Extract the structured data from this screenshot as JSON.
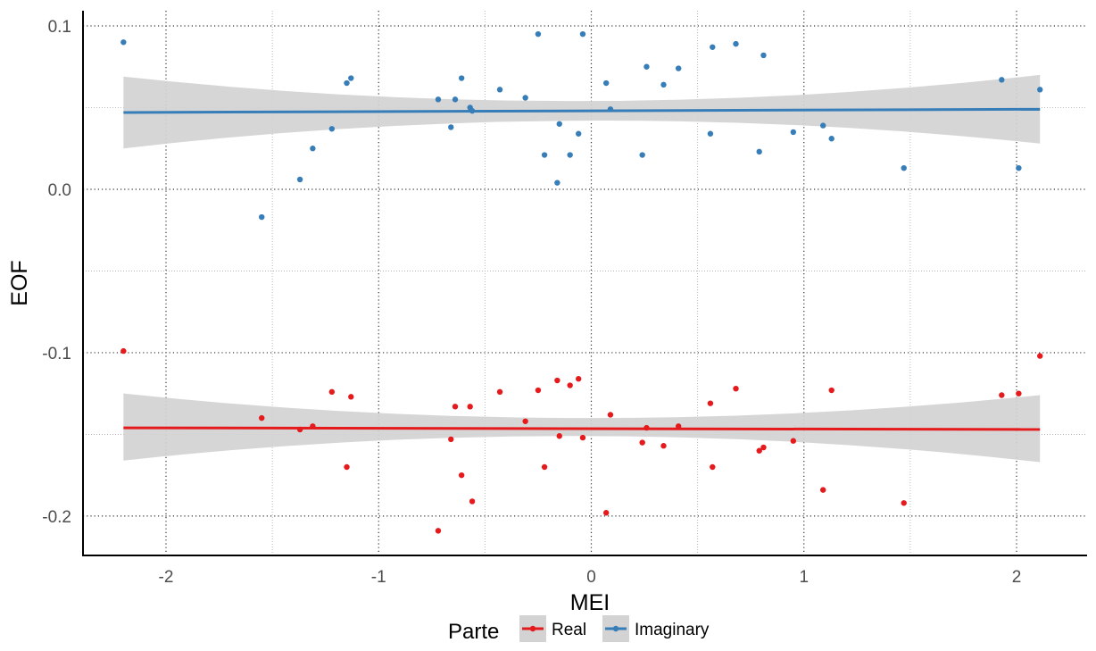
{
  "chart_data": {
    "type": "scatter",
    "xlabel": "MEI",
    "ylabel": "EOF",
    "xlim": [
      -2.4,
      2.4
    ],
    "ylim": [
      -0.225,
      0.11
    ],
    "x_ticks": [
      "-2",
      "-1",
      "0",
      "1",
      "2"
    ],
    "x_tick_values": [
      -2,
      -1,
      0,
      1,
      2
    ],
    "y_ticks": [
      "0.1",
      "0.0",
      "-0.1",
      "-0.2"
    ],
    "y_tick_values": [
      0.1,
      0.0,
      -0.1,
      -0.2
    ],
    "grid": true,
    "legend": {
      "title": "Parte",
      "position": "bottom",
      "entries": [
        "Real",
        "Imaginary"
      ]
    },
    "series": [
      {
        "name": "Real",
        "color": "#e41a1c",
        "points": [
          [
            -2.2,
            -0.099
          ],
          [
            -1.55,
            -0.14
          ],
          [
            -1.37,
            -0.147
          ],
          [
            -1.31,
            -0.145
          ],
          [
            -1.22,
            -0.124
          ],
          [
            -1.15,
            -0.17
          ],
          [
            -1.13,
            -0.127
          ],
          [
            -0.72,
            -0.209
          ],
          [
            -0.66,
            -0.153
          ],
          [
            -0.64,
            -0.133
          ],
          [
            -0.61,
            -0.175
          ],
          [
            -0.57,
            -0.133
          ],
          [
            -0.56,
            -0.191
          ],
          [
            -0.43,
            -0.124
          ],
          [
            -0.31,
            -0.142
          ],
          [
            -0.25,
            -0.123
          ],
          [
            -0.22,
            -0.17
          ],
          [
            -0.16,
            -0.117
          ],
          [
            -0.15,
            -0.151
          ],
          [
            -0.1,
            -0.12
          ],
          [
            -0.06,
            -0.116
          ],
          [
            -0.04,
            -0.152
          ],
          [
            0.07,
            -0.198
          ],
          [
            0.09,
            -0.138
          ],
          [
            0.24,
            -0.155
          ],
          [
            0.26,
            -0.146
          ],
          [
            0.34,
            -0.157
          ],
          [
            0.41,
            -0.145
          ],
          [
            0.56,
            -0.131
          ],
          [
            0.57,
            -0.17
          ],
          [
            0.68,
            -0.122
          ],
          [
            0.79,
            -0.16
          ],
          [
            0.81,
            -0.158
          ],
          [
            0.95,
            -0.154
          ],
          [
            1.09,
            -0.184
          ],
          [
            1.13,
            -0.123
          ],
          [
            1.47,
            -0.192
          ],
          [
            1.93,
            -0.126
          ],
          [
            2.01,
            -0.125
          ],
          [
            2.11,
            -0.102
          ]
        ],
        "fit": {
          "x": [
            -2.2,
            2.11
          ],
          "y": [
            -0.146,
            -0.147
          ]
        },
        "band": {
          "lower": [
            -0.166,
            -0.167
          ],
          "upper": [
            -0.125,
            -0.126
          ],
          "lower_mid": -0.151,
          "upper_mid": -0.14
        }
      },
      {
        "name": "Imaginary",
        "color": "#377eb8",
        "points": [
          [
            -2.2,
            0.09
          ],
          [
            -1.55,
            -0.017
          ],
          [
            -1.37,
            0.006
          ],
          [
            -1.31,
            0.025
          ],
          [
            -1.22,
            0.037
          ],
          [
            -1.15,
            0.065
          ],
          [
            -1.13,
            0.068
          ],
          [
            -0.72,
            0.055
          ],
          [
            -0.66,
            0.038
          ],
          [
            -0.64,
            0.055
          ],
          [
            -0.61,
            0.068
          ],
          [
            -0.57,
            0.05
          ],
          [
            -0.56,
            0.048
          ],
          [
            -0.43,
            0.061
          ],
          [
            -0.31,
            0.056
          ],
          [
            -0.25,
            0.095
          ],
          [
            -0.22,
            0.021
          ],
          [
            -0.16,
            0.004
          ],
          [
            -0.15,
            0.04
          ],
          [
            -0.1,
            0.021
          ],
          [
            -0.06,
            0.034
          ],
          [
            -0.04,
            0.095
          ],
          [
            0.07,
            0.065
          ],
          [
            0.09,
            0.049
          ],
          [
            0.24,
            0.021
          ],
          [
            0.26,
            0.075
          ],
          [
            0.34,
            0.064
          ],
          [
            0.41,
            0.074
          ],
          [
            0.56,
            0.034
          ],
          [
            0.57,
            0.087
          ],
          [
            0.68,
            0.089
          ],
          [
            0.79,
            0.023
          ],
          [
            0.81,
            0.082
          ],
          [
            0.95,
            0.035
          ],
          [
            1.09,
            0.039
          ],
          [
            1.13,
            0.031
          ],
          [
            1.47,
            0.013
          ],
          [
            1.93,
            0.067
          ],
          [
            2.01,
            0.013
          ],
          [
            2.11,
            0.061
          ]
        ],
        "fit": {
          "x": [
            -2.2,
            2.11
          ],
          "y": [
            0.047,
            0.049
          ]
        },
        "band": {
          "lower": [
            0.025,
            0.028
          ],
          "upper": [
            0.069,
            0.07
          ],
          "lower_mid": 0.042,
          "upper_mid": 0.054
        }
      }
    ]
  }
}
